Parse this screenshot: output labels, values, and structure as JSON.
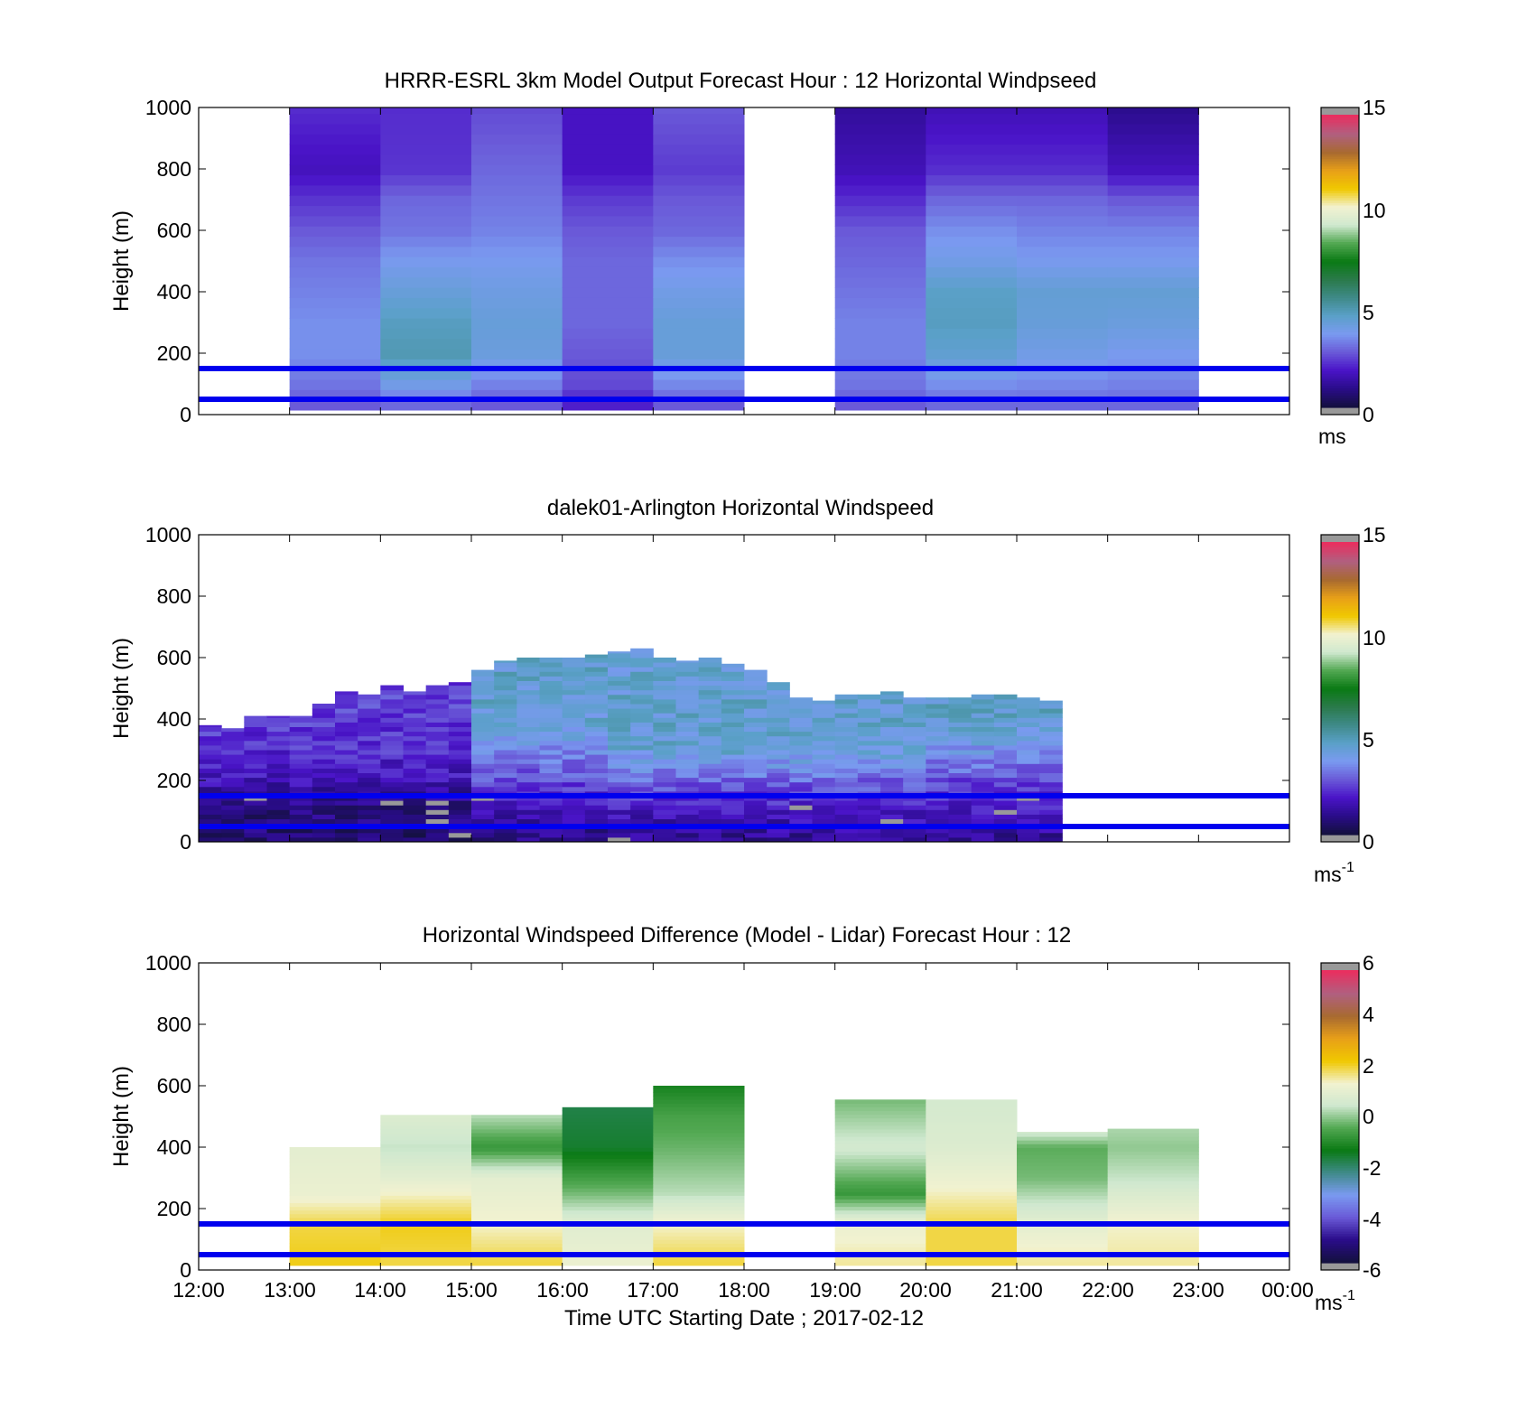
{
  "colors": {
    "reference_line": "#0000ee",
    "missing": "#999999",
    "speed_colormap": [
      "#141040",
      "#2a0c8a",
      "#4a14c8",
      "#6a5ad8",
      "#7a9af0",
      "#5aa0c8",
      "#3f8a88",
      "#2a7a4a",
      "#0a7a14",
      "#52a852",
      "#cfe8cf",
      "#f2f2d0",
      "#f0c800",
      "#e8a018",
      "#a86a30",
      "#b06080",
      "#e83060",
      "#c0c0c0"
    ],
    "diff_colormap": [
      "#141040",
      "#2a0c8a",
      "#6a5ad8",
      "#7a9af0",
      "#3f8a88",
      "#0a7a14",
      "#52a852",
      "#cfe8cf",
      "#f2f2d0",
      "#f0c800",
      "#e8a018",
      "#a86a30",
      "#b06080",
      "#e83060"
    ]
  },
  "shared": {
    "x_ticks": [
      "12:00",
      "13:00",
      "14:00",
      "15:00",
      "16:00",
      "17:00",
      "18:00",
      "19:00",
      "20:00",
      "21:00",
      "22:00",
      "23:00",
      "00:00"
    ],
    "y_ticks": [
      "0",
      "200",
      "400",
      "600",
      "800",
      "1000"
    ],
    "ylabel": "Height (m)",
    "xlabel": "Time UTC  Starting Date ; 2017-02-12"
  },
  "panels": [
    {
      "title": "HRRR-ESRL 3km Model Output   Forecast Hour : 12 Horizontal Windpseed",
      "colorbar_ticks": [
        "0",
        "5",
        "10",
        "15"
      ],
      "unit": "ms"
    },
    {
      "title": "dalek01-Arlington  Horizontal Windspeed",
      "colorbar_ticks": [
        "0",
        "5",
        "10",
        "15"
      ],
      "unit": "ms",
      "unit_exp": "-1"
    },
    {
      "title": "Horizontal Windspeed Difference (Model - Lidar) Forecast Hour : 12",
      "colorbar_ticks": [
        "-6",
        "-4",
        "-2",
        "0",
        "2",
        "4",
        "6"
      ],
      "unit": "ms",
      "unit_exp": "-1"
    }
  ],
  "chart_data": [
    {
      "type": "heatmap",
      "title": "HRRR-ESRL 3km Model Output   Forecast Hour : 12 Horizontal Windpseed",
      "xlabel": "",
      "ylabel": "Height (m)",
      "x_range_hours": [
        12,
        24
      ],
      "ylim": [
        0,
        1000
      ],
      "color_range": [
        0,
        15
      ],
      "colorbar_label": "ms",
      "reference_lines_height_m": [
        50,
        150
      ],
      "columns": [
        {
          "start": 13,
          "end": 14,
          "speed_profile": [
            [
              30,
              2.8
            ],
            [
              100,
              3.2
            ],
            [
              200,
              3.6
            ],
            [
              300,
              3.6
            ],
            [
              400,
              3.4
            ],
            [
              500,
              3.2
            ],
            [
              600,
              2.8
            ],
            [
              700,
              2.3
            ],
            [
              800,
              1.7
            ],
            [
              1000,
              2.2
            ]
          ]
        },
        {
          "start": 14,
          "end": 15,
          "speed_profile": [
            [
              30,
              3.0
            ],
            [
              100,
              4.0
            ],
            [
              200,
              5.0
            ],
            [
              300,
              4.8
            ],
            [
              400,
              4.3
            ],
            [
              500,
              3.8
            ],
            [
              600,
              3.2
            ],
            [
              700,
              3.0
            ],
            [
              800,
              2.3
            ],
            [
              1000,
              2.2
            ]
          ]
        },
        {
          "start": 15,
          "end": 16,
          "speed_profile": [
            [
              30,
              2.8
            ],
            [
              100,
              3.4
            ],
            [
              200,
              4.2
            ],
            [
              300,
              4.3
            ],
            [
              400,
              4.1
            ],
            [
              500,
              3.8
            ],
            [
              600,
              3.4
            ],
            [
              700,
              3.2
            ],
            [
              800,
              3.0
            ],
            [
              1000,
              2.6
            ]
          ]
        },
        {
          "start": 16,
          "end": 17,
          "speed_profile": [
            [
              30,
              2.0
            ],
            [
              100,
              2.6
            ],
            [
              200,
              2.8
            ],
            [
              300,
              3.0
            ],
            [
              400,
              3.0
            ],
            [
              500,
              3.0
            ],
            [
              600,
              2.8
            ],
            [
              700,
              2.4
            ],
            [
              800,
              1.8
            ],
            [
              1000,
              1.8
            ]
          ]
        },
        {
          "start": 17,
          "end": 18,
          "speed_profile": [
            [
              30,
              2.8
            ],
            [
              100,
              3.5
            ],
            [
              200,
              4.3
            ],
            [
              300,
              4.3
            ],
            [
              400,
              4.0
            ],
            [
              500,
              3.6
            ],
            [
              600,
              3.0
            ],
            [
              700,
              2.8
            ],
            [
              800,
              2.4
            ],
            [
              1000,
              2.8
            ]
          ]
        },
        {
          "start": 19,
          "end": 20,
          "speed_profile": [
            [
              30,
              2.8
            ],
            [
              100,
              3.2
            ],
            [
              200,
              3.4
            ],
            [
              300,
              3.4
            ],
            [
              400,
              3.2
            ],
            [
              500,
              3.0
            ],
            [
              600,
              2.8
            ],
            [
              700,
              2.2
            ],
            [
              800,
              1.6
            ],
            [
              1000,
              1.2
            ]
          ]
        },
        {
          "start": 20,
          "end": 21,
          "speed_profile": [
            [
              30,
              3.0
            ],
            [
              100,
              3.6
            ],
            [
              200,
              4.5
            ],
            [
              300,
              4.8
            ],
            [
              400,
              4.7
            ],
            [
              500,
              4.0
            ],
            [
              600,
              3.6
            ],
            [
              700,
              3.0
            ],
            [
              800,
              2.2
            ],
            [
              1000,
              1.6
            ]
          ]
        },
        {
          "start": 21,
          "end": 22,
          "speed_profile": [
            [
              30,
              3.0
            ],
            [
              100,
              3.5
            ],
            [
              200,
              4.0
            ],
            [
              300,
              4.3
            ],
            [
              400,
              4.4
            ],
            [
              500,
              3.8
            ],
            [
              600,
              3.4
            ],
            [
              700,
              3.0
            ],
            [
              800,
              2.2
            ],
            [
              1000,
              1.6
            ]
          ]
        },
        {
          "start": 22,
          "end": 23,
          "speed_profile": [
            [
              30,
              3.0
            ],
            [
              100,
              3.4
            ],
            [
              200,
              3.8
            ],
            [
              300,
              4.2
            ],
            [
              400,
              4.4
            ],
            [
              500,
              3.8
            ],
            [
              600,
              3.4
            ],
            [
              700,
              2.8
            ],
            [
              800,
              1.7
            ],
            [
              1000,
              1.0
            ]
          ]
        }
      ]
    },
    {
      "type": "heatmap",
      "title": "dalek01-Arlington  Horizontal Windspeed",
      "xlabel": "",
      "ylabel": "Height (m)",
      "x_range_hours": [
        12,
        24
      ],
      "ylim": [
        0,
        1000
      ],
      "color_range": [
        0,
        15
      ],
      "colorbar_label": "ms-1",
      "reference_lines_height_m": [
        50,
        150
      ],
      "bins_per_hour": 4,
      "top_height_m": [
        380,
        370,
        410,
        410,
        410,
        450,
        490,
        480,
        510,
        490,
        510,
        520,
        560,
        590,
        600,
        600,
        600,
        610,
        620,
        630,
        600,
        590,
        600,
        580,
        560,
        520,
        470,
        460,
        480,
        480,
        490,
        470,
        470,
        470,
        480,
        480,
        470,
        460
      ],
      "profiles": [
        {
          "hour_end": 14.75,
          "speed_profile": [
            [
              0,
              0.6
            ],
            [
              100,
              0.8
            ],
            [
              200,
              1.6
            ],
            [
              300,
              2.2
            ],
            [
              400,
              2.4
            ],
            [
              600,
              2.6
            ]
          ]
        },
        {
          "hour_end": 16.25,
          "speed_profile": [
            [
              0,
              0.8
            ],
            [
              100,
              1.6
            ],
            [
              200,
              2.6
            ],
            [
              300,
              3.6
            ],
            [
              400,
              4.4
            ],
            [
              600,
              4.6
            ]
          ]
        },
        {
          "hour_end": 19.75,
          "speed_profile": [
            [
              0,
              1.0
            ],
            [
              100,
              1.8
            ],
            [
              200,
              3.0
            ],
            [
              300,
              4.4
            ],
            [
              400,
              4.5
            ],
            [
              600,
              4.4
            ]
          ]
        },
        {
          "hour_end": 24.0,
          "speed_profile": [
            [
              0,
              1.0
            ],
            [
              100,
              1.8
            ],
            [
              200,
              2.6
            ],
            [
              300,
              3.8
            ],
            [
              400,
              4.6
            ],
            [
              600,
              4.8
            ]
          ]
        }
      ]
    },
    {
      "type": "heatmap",
      "title": "Horizontal Windspeed Difference (Model - Lidar) Forecast Hour : 12",
      "xlabel": "Time UTC  Starting Date ; 2017-02-12",
      "ylabel": "Height (m)",
      "x_range_hours": [
        12,
        24
      ],
      "ylim": [
        0,
        1000
      ],
      "color_range": [
        -6,
        6
      ],
      "colorbar_label": "ms-1",
      "reference_lines_height_m": [
        50,
        150
      ],
      "columns": [
        {
          "start": 13,
          "end": 14,
          "top": 400,
          "diff_profile": [
            [
              30,
              2.2
            ],
            [
              150,
              2.0
            ],
            [
              250,
              1.2
            ],
            [
              400,
              1.0
            ]
          ]
        },
        {
          "start": 14,
          "end": 15,
          "top": 505,
          "diff_profile": [
            [
              30,
              2.0
            ],
            [
              150,
              2.2
            ],
            [
              300,
              1.0
            ],
            [
              400,
              0.4
            ],
            [
              505,
              0.8
            ]
          ]
        },
        {
          "start": 15,
          "end": 16,
          "top": 505,
          "diff_profile": [
            [
              30,
              2.0
            ],
            [
              150,
              1.4
            ],
            [
              300,
              1.0
            ],
            [
              400,
              -0.8
            ],
            [
              505,
              0.3
            ]
          ]
        },
        {
          "start": 16,
          "end": 17,
          "top": 530,
          "diff_profile": [
            [
              30,
              1.2
            ],
            [
              150,
              0.9
            ],
            [
              250,
              -0.2
            ],
            [
              400,
              -1.6
            ],
            [
              530,
              -1.8
            ]
          ]
        },
        {
          "start": 17,
          "end": 18,
          "top": 600,
          "diff_profile": [
            [
              30,
              2.0
            ],
            [
              150,
              1.4
            ],
            [
              250,
              0.3
            ],
            [
              400,
              -0.3
            ],
            [
              500,
              -0.6
            ],
            [
              600,
              -1.2
            ]
          ]
        },
        {
          "start": 19,
          "end": 20,
          "top": 555,
          "diff_profile": [
            [
              30,
              1.6
            ],
            [
              150,
              1.2
            ],
            [
              250,
              -0.8
            ],
            [
              400,
              0.6
            ],
            [
              555,
              -0.2
            ]
          ]
        },
        {
          "start": 20,
          "end": 21,
          "top": 555,
          "diff_profile": [
            [
              30,
              2.0
            ],
            [
              150,
              2.0
            ],
            [
              300,
              1.2
            ],
            [
              400,
              0.8
            ],
            [
              555,
              0.6
            ]
          ]
        },
        {
          "start": 21,
          "end": 22,
          "top": 450,
          "diff_profile": [
            [
              30,
              1.6
            ],
            [
              150,
              1.0
            ],
            [
              300,
              -0.2
            ],
            [
              400,
              -0.4
            ],
            [
              450,
              0.6
            ]
          ]
        },
        {
          "start": 22,
          "end": 23,
          "top": 460,
          "diff_profile": [
            [
              30,
              1.6
            ],
            [
              150,
              1.4
            ],
            [
              300,
              0.4
            ],
            [
              400,
              0.0
            ],
            [
              460,
              0.2
            ]
          ]
        }
      ]
    }
  ]
}
